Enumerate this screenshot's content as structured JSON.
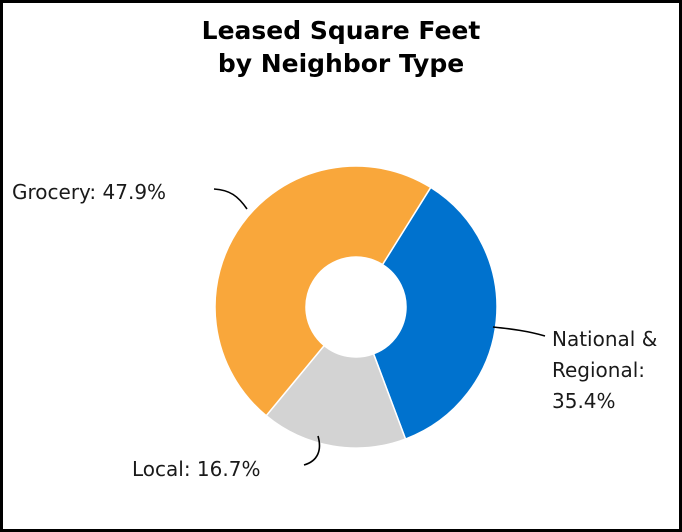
{
  "chart_data": {
    "type": "pie",
    "style": "donut",
    "title_lines": [
      "Leased Square Feet",
      "by Neighbor Type"
    ],
    "slices": [
      {
        "label": "National & Regional",
        "value": 35.4,
        "color": "#0072CE",
        "label_lines": [
          "National &",
          "Regional:",
          "35.4%"
        ]
      },
      {
        "label": "Local",
        "value": 16.7,
        "color": "#D3D3D3",
        "label_lines": [
          "Local: 16.7%"
        ]
      },
      {
        "label": "Grocery",
        "value": 47.9,
        "color": "#F9A73B",
        "label_lines": [
          "Grocery: 47.9%"
        ]
      }
    ],
    "legend": "none"
  }
}
